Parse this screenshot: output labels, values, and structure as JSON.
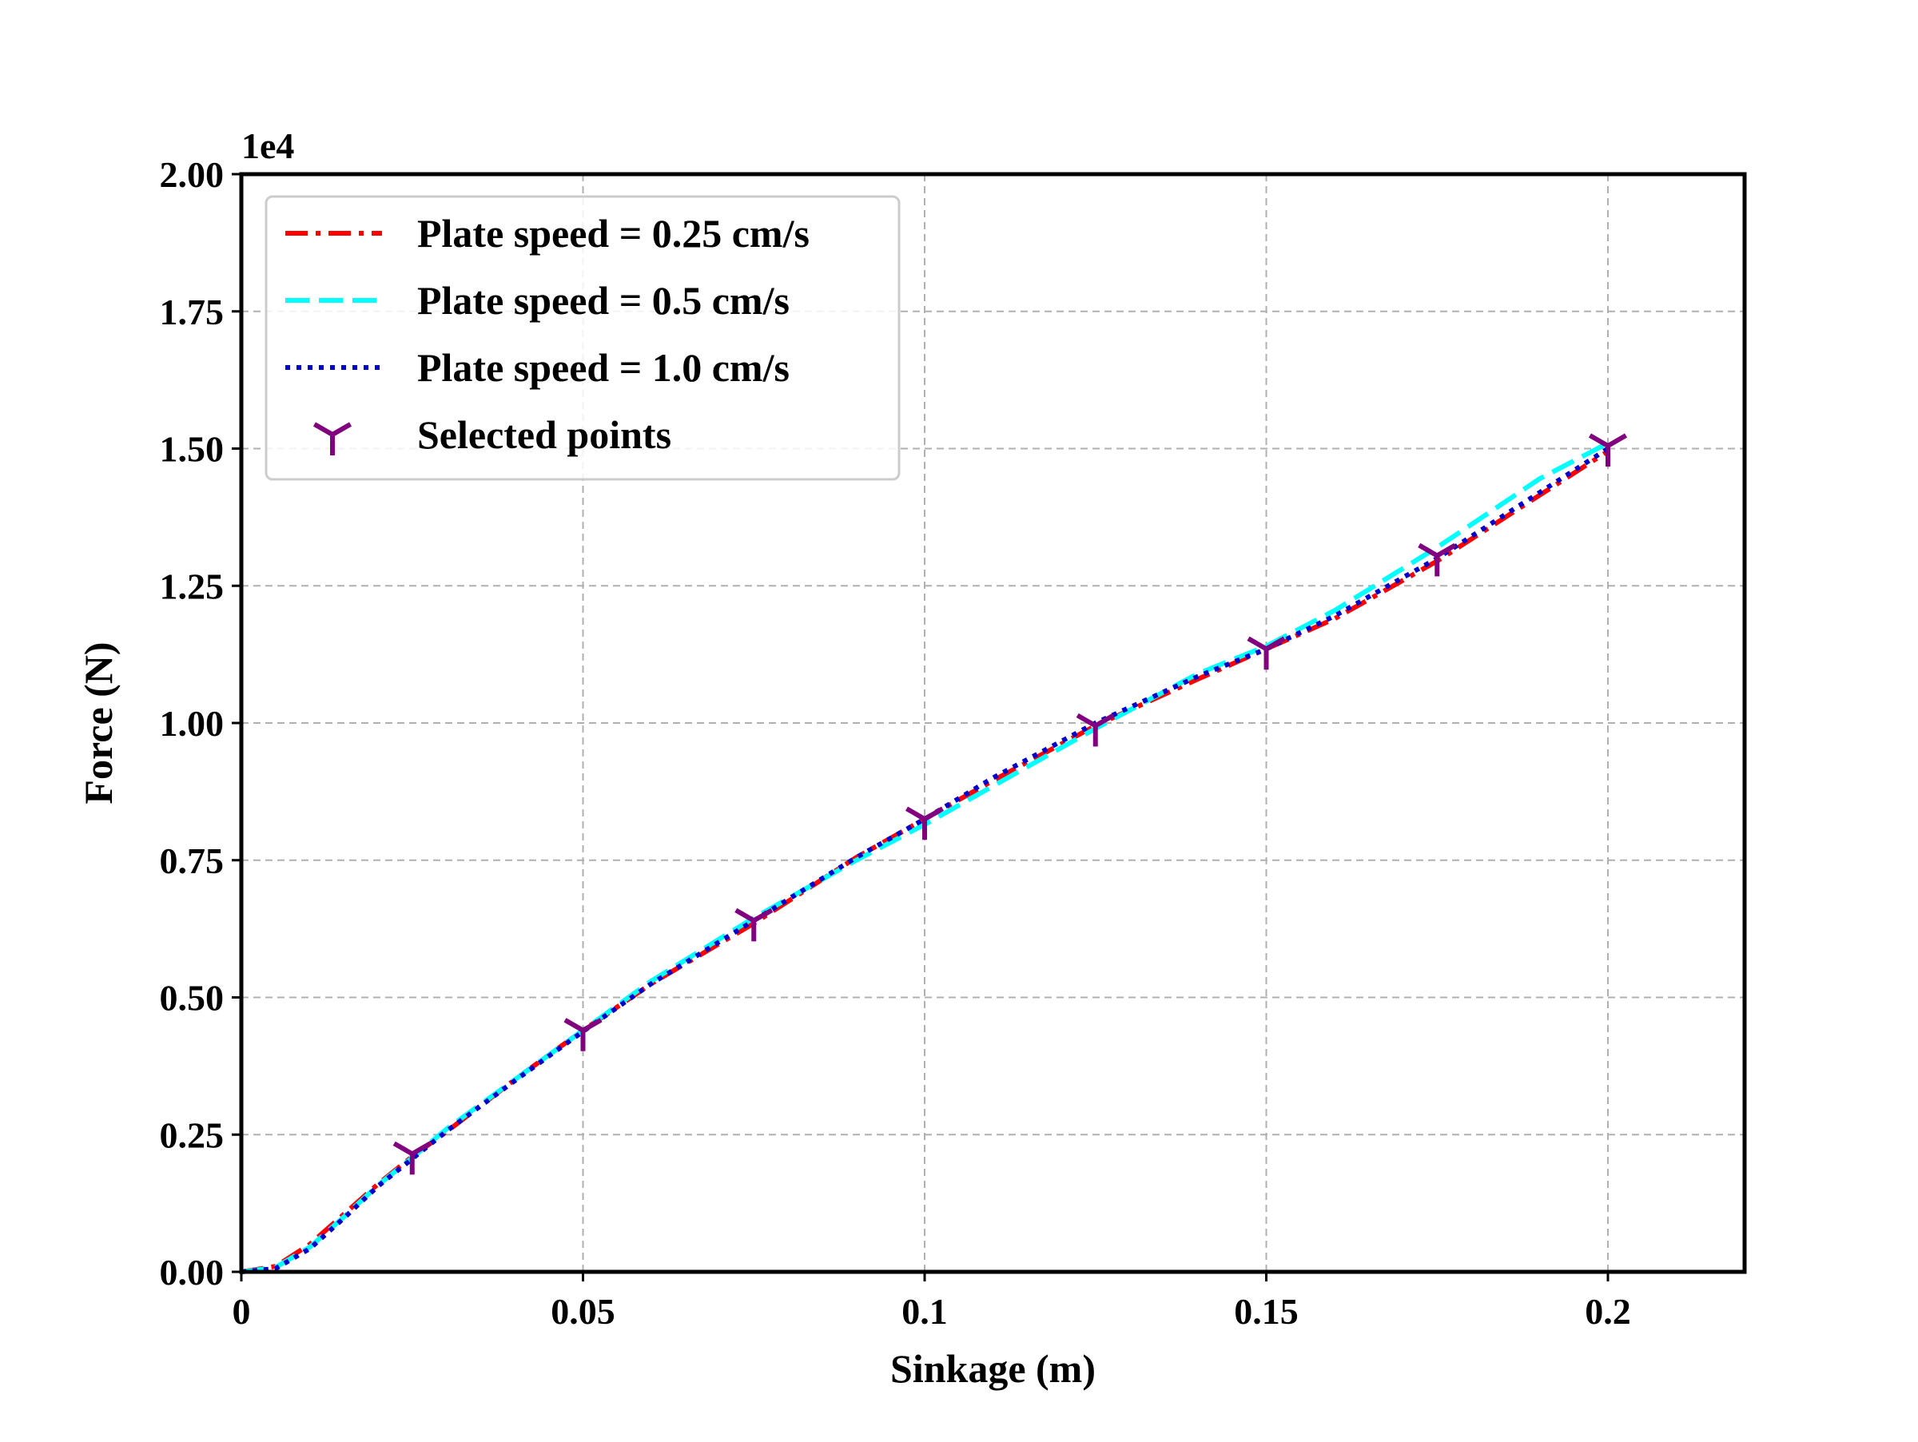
{
  "chart_data": {
    "type": "line",
    "title": "",
    "xlabel": "Sinkage (m)",
    "ylabel": "Force (N)",
    "y_offset_label": "1e4",
    "xlim": [
      0,
      0.22
    ],
    "ylim": [
      0,
      20000
    ],
    "x_tick_values": [
      0,
      0.05,
      0.1,
      0.15,
      0.2
    ],
    "x_tick_labels": [
      "0",
      "0.05",
      "0.1",
      "0.15",
      "0.2"
    ],
    "y_tick_values": [
      0,
      2500,
      5000,
      7500,
      10000,
      12500,
      15000,
      17500,
      20000
    ],
    "y_tick_labels": [
      "0.00",
      "0.25",
      "0.50",
      "0.75",
      "1.00",
      "1.25",
      "1.50",
      "1.75",
      "2.00"
    ],
    "grid": true,
    "legend_position": "top-left",
    "series": [
      {
        "name": "Plate speed = 0.25 cm/s",
        "color": "#ff0000",
        "style": "dashdot",
        "x": [
          0,
          0.005,
          0.01,
          0.015,
          0.02,
          0.025,
          0.03,
          0.04,
          0.05,
          0.06,
          0.075,
          0.09,
          0.1,
          0.11,
          0.125,
          0.14,
          0.15,
          0.16,
          0.175,
          0.19,
          0.2
        ],
        "y": [
          0,
          100,
          500,
          1050,
          1600,
          2100,
          2550,
          3500,
          4400,
          5250,
          6350,
          7550,
          8250,
          8950,
          9950,
          10800,
          11350,
          11900,
          12950,
          14150,
          14950
        ]
      },
      {
        "name": "Plate speed = 0.5 cm/s",
        "color": "#00ffff",
        "style": "dashed",
        "x": [
          0,
          0.005,
          0.01,
          0.015,
          0.02,
          0.025,
          0.03,
          0.04,
          0.05,
          0.06,
          0.075,
          0.09,
          0.1,
          0.11,
          0.125,
          0.14,
          0.15,
          0.16,
          0.175,
          0.19,
          0.2
        ],
        "y": [
          0,
          80,
          450,
          1000,
          1580,
          2080,
          2600,
          3500,
          4400,
          5300,
          6450,
          7500,
          8150,
          8850,
          9900,
          10900,
          11400,
          12050,
          13200,
          14450,
          15100
        ]
      },
      {
        "name": "Plate speed = 1.0 cm/s",
        "color": "#0000cc",
        "style": "dotted",
        "x": [
          0,
          0.005,
          0.01,
          0.015,
          0.02,
          0.025,
          0.03,
          0.04,
          0.05,
          0.06,
          0.075,
          0.09,
          0.1,
          0.11,
          0.125,
          0.14,
          0.15,
          0.16,
          0.175,
          0.19,
          0.2
        ],
        "y": [
          0,
          60,
          420,
          980,
          1560,
          2060,
          2560,
          3480,
          4380,
          5250,
          6400,
          7550,
          8250,
          9000,
          10000,
          10850,
          11350,
          11950,
          13000,
          14200,
          15000
        ]
      }
    ],
    "markers": {
      "name": "Selected points",
      "color": "#800080",
      "symbol": "tri_down",
      "x": [
        0.025,
        0.05,
        0.075,
        0.1,
        0.125,
        0.15,
        0.175,
        0.2
      ],
      "y": [
        2150,
        4400,
        6400,
        8250,
        9950,
        11350,
        13050,
        15050
      ]
    }
  }
}
